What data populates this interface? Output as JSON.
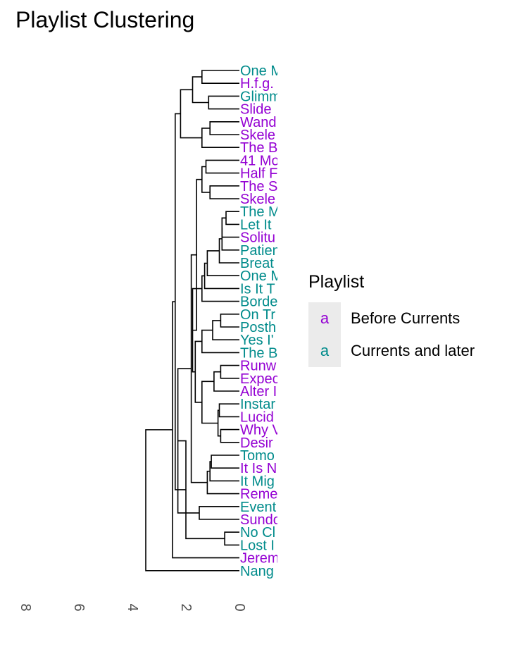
{
  "title": "Playlist Clustering",
  "legend": {
    "title": "Playlist",
    "key_glyph": "a",
    "items": [
      {
        "label": "Before Currents",
        "color": "#9400d3"
      },
      {
        "label": "Currents and later",
        "color": "#008b8b"
      }
    ]
  },
  "chart_data": {
    "type": "dendrogram",
    "title": "Playlist Clustering",
    "xlabel": "",
    "ylabel": "",
    "height_axis": {
      "ticks": [
        8,
        6,
        4,
        2,
        0
      ],
      "range": [
        0,
        8.8
      ],
      "reversed": true
    },
    "colors": {
      "Before Currents": "#9400d3",
      "Currents and later": "#008b8b"
    },
    "leaves": [
      {
        "label": "One M",
        "group": "Currents and later"
      },
      {
        "label": "H.f.g.",
        "group": "Before Currents"
      },
      {
        "label": "Glimm",
        "group": "Currents and later"
      },
      {
        "label": "Slide",
        "group": "Before Currents"
      },
      {
        "label": "Wand",
        "group": "Before Currents"
      },
      {
        "label": "Skele",
        "group": "Before Currents"
      },
      {
        "label": "The B",
        "group": "Before Currents"
      },
      {
        "label": "41 Mo",
        "group": "Before Currents"
      },
      {
        "label": "Half F",
        "group": "Before Currents"
      },
      {
        "label": "The S",
        "group": "Before Currents"
      },
      {
        "label": "Skele",
        "group": "Before Currents"
      },
      {
        "label": "The M",
        "group": "Currents and later"
      },
      {
        "label": "Let It",
        "group": "Currents and later"
      },
      {
        "label": "Solitu",
        "group": "Before Currents"
      },
      {
        "label": "Patien",
        "group": "Currents and later"
      },
      {
        "label": "Breat",
        "group": "Currents and later"
      },
      {
        "label": "One M",
        "group": "Currents and later"
      },
      {
        "label": "Is It T",
        "group": "Currents and later"
      },
      {
        "label": "Borde",
        "group": "Currents and later"
      },
      {
        "label": "On Tr",
        "group": "Currents and later"
      },
      {
        "label": "Posth",
        "group": "Currents and later"
      },
      {
        "label": "Yes I'",
        "group": "Currents and later"
      },
      {
        "label": "The B",
        "group": "Currents and later"
      },
      {
        "label": "Runw",
        "group": "Before Currents"
      },
      {
        "label": "Expec",
        "group": "Before Currents"
      },
      {
        "label": "Alter I",
        "group": "Before Currents"
      },
      {
        "label": "Instar",
        "group": "Currents and later"
      },
      {
        "label": "Lucid",
        "group": "Before Currents"
      },
      {
        "label": "Why V",
        "group": "Before Currents"
      },
      {
        "label": "Desir",
        "group": "Before Currents"
      },
      {
        "label": "Tomo",
        "group": "Currents and later"
      },
      {
        "label": "It Is N",
        "group": "Before Currents"
      },
      {
        "label": "It Mig",
        "group": "Currents and later"
      },
      {
        "label": "Reme",
        "group": "Before Currents"
      },
      {
        "label": "Event",
        "group": "Currents and later"
      },
      {
        "label": "Sundo",
        "group": "Before Currents"
      },
      {
        "label": "No Cl",
        "group": "Currents and later"
      },
      {
        "label": "Lost I",
        "group": "Currents and later"
      },
      {
        "label": "Jerem",
        "group": "Before Currents"
      },
      {
        "label": "Nang",
        "group": "Currents and later"
      }
    ],
    "merges": [
      [
        0,
        1,
        1.4
      ],
      [
        2,
        3,
        1.15
      ],
      [
        4,
        5,
        1.1
      ],
      [
        -3,
        6,
        1.4
      ],
      [
        -1,
        -2,
        1.75
      ],
      [
        -5,
        -4,
        2.2
      ],
      [
        7,
        8,
        1.25
      ],
      [
        9,
        10,
        1.1
      ],
      [
        -7,
        -8,
        1.4
      ],
      [
        11,
        12,
        0.5
      ],
      [
        -10,
        13,
        0.65
      ],
      [
        -11,
        14,
        0.65
      ],
      [
        -12,
        15,
        0.75
      ],
      [
        -13,
        16,
        1.2
      ],
      [
        -14,
        17,
        1.3
      ],
      [
        -15,
        18,
        1.4
      ],
      [
        19,
        20,
        0.7
      ],
      [
        -17,
        21,
        1.0
      ],
      [
        -18,
        22,
        1.4
      ],
      [
        23,
        24,
        0.7
      ],
      [
        -20,
        25,
        0.95
      ],
      [
        26,
        27,
        0.75
      ],
      [
        28,
        29,
        0.7
      ],
      [
        -22,
        -23,
        0.8
      ],
      [
        -21,
        -24,
        1.4
      ],
      [
        -19,
        -25,
        1.65
      ],
      [
        -16,
        -26,
        1.75
      ],
      [
        -9,
        -27,
        1.6
      ],
      [
        30,
        31,
        1.05
      ],
      [
        -29,
        32,
        1.1
      ],
      [
        -30,
        33,
        1.2
      ],
      [
        -28,
        -31,
        1.8
      ],
      [
        34,
        35,
        1.5
      ],
      [
        -32,
        -33,
        2.3
      ],
      [
        36,
        37,
        0.55
      ],
      [
        -34,
        -35,
        2.0
      ],
      [
        -6,
        -36,
        2.4
      ],
      [
        -37,
        38,
        2.5
      ],
      [
        -38,
        39,
        3.5
      ]
    ]
  }
}
